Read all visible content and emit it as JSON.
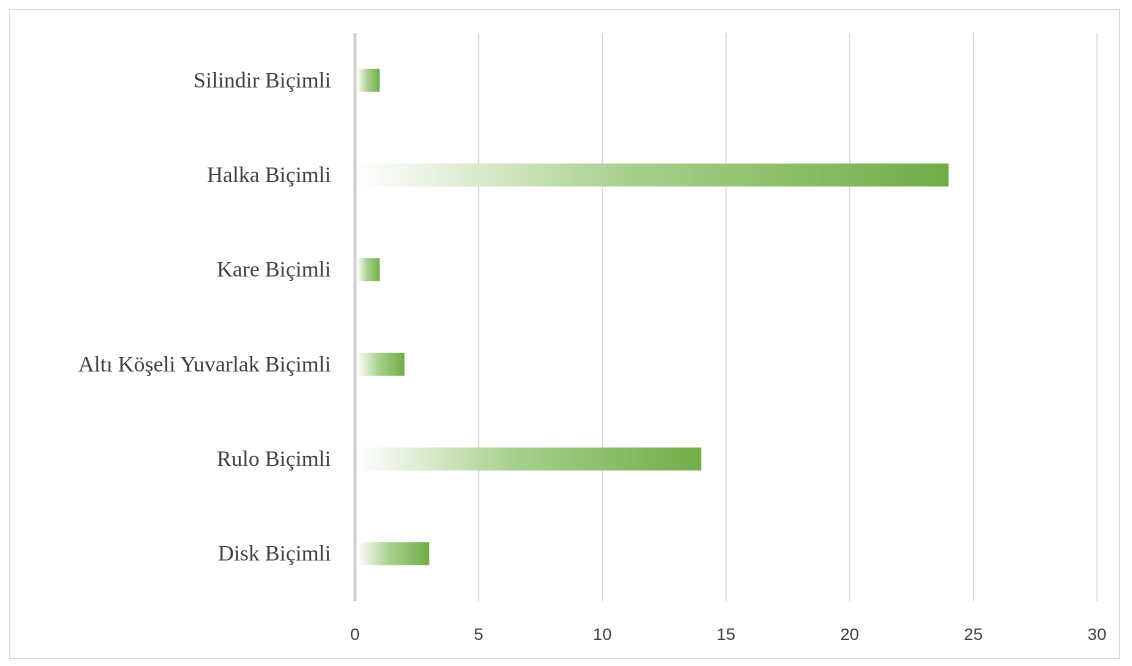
{
  "chart_data": {
    "type": "bar",
    "orientation": "horizontal",
    "categories": [
      "Silindir Biçimli",
      "Halka Biçimli",
      "Kare Biçimli",
      "Altı Köşeli Yuvarlak Biçimli",
      "Rulo Biçimli",
      "Disk Biçimli"
    ],
    "values": [
      1,
      24,
      1,
      2,
      14,
      3
    ],
    "title": "",
    "xlabel": "",
    "ylabel": "",
    "xlim": [
      0,
      30
    ],
    "xticks": [
      "0",
      "5",
      "10",
      "15",
      "20",
      "25",
      "30"
    ],
    "grid": "vertical",
    "legend": "none",
    "bar_color": "#70ad47",
    "gridline_color": "#d0d0d0"
  }
}
